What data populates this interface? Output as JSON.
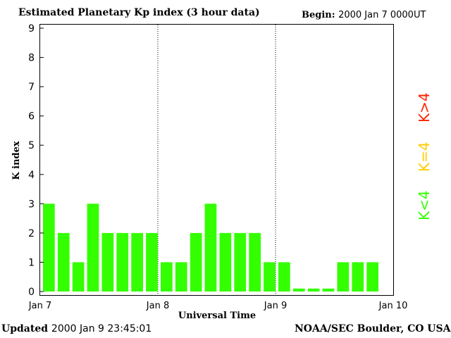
{
  "header": {
    "title": "Estimated Planetary Kp index (3 hour data)",
    "begin_label": "Begin:",
    "begin_value": "2000 Jan 7 0000UT"
  },
  "footer": {
    "updated_label": "Updated",
    "updated_value": "2000 Jan  9 23:45:01",
    "source": "NOAA/SEC Boulder, CO USA"
  },
  "legend": {
    "low": {
      "text": "K<4",
      "color": "#33ff00"
    },
    "mid": {
      "text": "K=4",
      "color": "#ffcc00"
    },
    "high": {
      "text": "K>4",
      "color": "#ff2200"
    }
  },
  "chart_data": {
    "type": "bar",
    "title": "Estimated Planetary Kp index (3 hour data)",
    "xlabel": "Universal Time",
    "ylabel": "K index",
    "ylim": [
      0,
      9
    ],
    "yticks": [
      "0",
      "1",
      "2",
      "3",
      "4",
      "5",
      "6",
      "7",
      "8",
      "9"
    ],
    "xticks": [
      "Jan 7",
      "Jan 8",
      "Jan 9",
      "Jan 10"
    ],
    "interval_hours": 3,
    "values": [
      3,
      2,
      1,
      3,
      2,
      2,
      2,
      2,
      1,
      1,
      2,
      3,
      2,
      2,
      2,
      1,
      1,
      0,
      0,
      0,
      1,
      1,
      1
    ],
    "bar_color": "#33ff00",
    "day_separators": [
      "Jan 8",
      "Jan 9"
    ]
  }
}
